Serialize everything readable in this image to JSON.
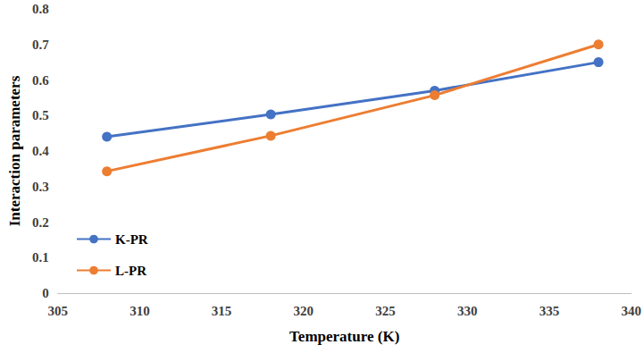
{
  "chart_data": {
    "type": "line",
    "xlabel": "Temperature (K)",
    "ylabel": "Interaction parameters",
    "x": [
      308,
      318,
      328,
      338
    ],
    "series": [
      {
        "name": "K-PR",
        "color": "#4472c4",
        "values": [
          0.44,
          0.503,
          0.57,
          0.65
        ]
      },
      {
        "name": "L-PR",
        "color": "#ed7d31",
        "values": [
          0.343,
          0.443,
          0.557,
          0.7
        ]
      }
    ],
    "xlim": [
      305,
      340
    ],
    "xticks": [
      305,
      310,
      315,
      320,
      325,
      330,
      335,
      340
    ],
    "ylim": [
      0,
      0.8
    ],
    "yticks": [
      0,
      0.1,
      0.2,
      0.3,
      0.4,
      0.5,
      0.6,
      0.7,
      0.8
    ],
    "grid": false,
    "legend": "lower left",
    "marker": "circle"
  }
}
